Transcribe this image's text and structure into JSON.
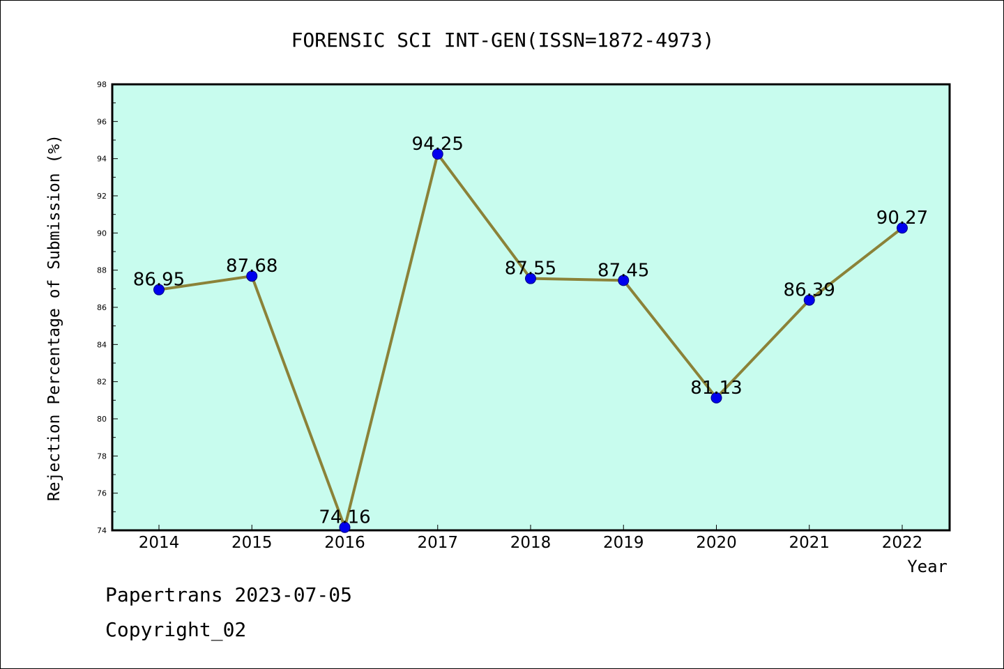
{
  "chart_data": {
    "type": "line",
    "title": "FORENSIC SCI INT-GEN(ISSN=1872-4973)",
    "xlabel": "Year",
    "ylabel": "Rejection Percentage of Submission (%)",
    "categories": [
      "2014",
      "2015",
      "2016",
      "2017",
      "2018",
      "2019",
      "2020",
      "2021",
      "2022"
    ],
    "values": [
      86.95,
      87.68,
      74.16,
      94.25,
      87.55,
      87.45,
      81.13,
      86.39,
      90.27
    ],
    "data_labels": [
      "86.95",
      "87.68",
      "74.16",
      "94.25",
      "87.55",
      "87.45",
      "81.13",
      "86.39",
      "90.27"
    ],
    "ylim": [
      74,
      98
    ],
    "yticks": [
      "74",
      "76",
      "78",
      "80",
      "82",
      "84",
      "86",
      "88",
      "90",
      "92",
      "94",
      "96",
      "98"
    ],
    "grid": false,
    "legend": "none",
    "colors": {
      "plot_background": "#c8fcee",
      "line": "#8b8238",
      "marker": "#0000ee",
      "marker_edge": "#000080"
    }
  },
  "footer": {
    "date_text": "Papertrans 2023-07-05",
    "copyright_text": "Copyright_02"
  }
}
